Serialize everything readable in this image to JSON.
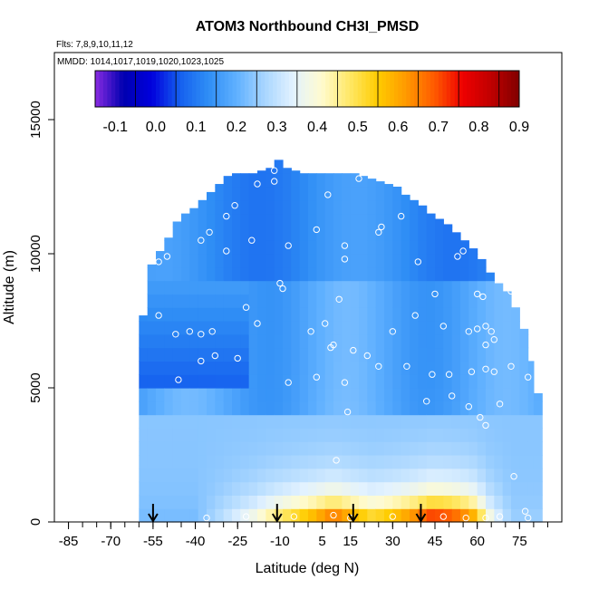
{
  "chart_data": {
    "type": "heatmap",
    "title": "ATOM3 Northbound CH3I_PMSD",
    "flights_label": "Flts: 7,8,9,10,11,12",
    "mmdd_label": "MMDD: 1014,1017,1019,1020,1023,1025",
    "xlabel": "Latitude (deg N)",
    "ylabel": "Altitude (m)",
    "xlim": [
      -90,
      90
    ],
    "ylim": [
      0,
      17500
    ],
    "x_ticks": [
      -85,
      -70,
      -55,
      -40,
      -25,
      -10,
      5,
      15,
      30,
      45,
      60,
      75
    ],
    "x_tick_labels": [
      "-85",
      "-70",
      "-55",
      "-40",
      "-25",
      "-10",
      "5",
      "15",
      "30",
      "45",
      "60",
      "75"
    ],
    "y_ticks": [
      0,
      5000,
      10000,
      15000
    ],
    "y_tick_labels": [
      "0",
      "5000",
      "10000",
      "15000"
    ],
    "colorbar": {
      "range": [
        -0.15,
        0.9
      ],
      "ticks": [
        -0.1,
        0.0,
        0.1,
        0.2,
        0.3,
        0.4,
        0.5,
        0.6,
        0.7,
        0.8,
        0.9
      ],
      "tick_labels": [
        "-0.1",
        "0.0",
        "0.1",
        "0.2",
        "0.3",
        "0.4",
        "0.5",
        "0.6",
        "0.7",
        "0.8",
        "0.9"
      ],
      "colors": [
        "#8a2be2",
        "#0000b0",
        "#0000dd",
        "#1560ee",
        "#2f8ef5",
        "#5fb0ff",
        "#a9d6ff",
        "#e2f2ff",
        "#fffbd0",
        "#ffe866",
        "#ffcc00",
        "#ff9900",
        "#ff5a00",
        "#ee0000",
        "#c00000",
        "#800000"
      ]
    },
    "outline": {
      "lat": [
        -60,
        -58,
        -55,
        -52,
        -50,
        -47,
        -45,
        -42,
        -40,
        -37,
        -35,
        -32,
        -30,
        -27,
        -25,
        -22,
        -20,
        -17,
        -15,
        -12,
        -10,
        10,
        13,
        15,
        18,
        20,
        23,
        25,
        28,
        30,
        33,
        35,
        38,
        40,
        43,
        45,
        48,
        50,
        53,
        55,
        58,
        60,
        63,
        65,
        68,
        70,
        73,
        75,
        78,
        80
      ],
      "top": [
        0,
        0,
        0,
        0,
        0,
        0,
        0,
        0,
        0,
        0,
        0,
        0,
        0,
        0,
        0,
        0,
        0,
        0,
        0,
        0,
        0,
        0,
        0,
        0,
        0,
        0,
        0,
        0,
        0,
        0,
        0,
        0,
        0,
        0,
        0,
        0,
        0,
        0,
        0,
        0,
        0,
        0,
        0,
        0,
        0,
        0,
        0,
        0,
        0,
        0
      ]
    },
    "columns": [
      {
        "lat": -60,
        "top": 7700
      },
      {
        "lat": -57,
        "top": 9600
      },
      {
        "lat": -54,
        "top": 10100
      },
      {
        "lat": -51,
        "top": 10600
      },
      {
        "lat": -48,
        "top": 11200
      },
      {
        "lat": -45,
        "top": 11500
      },
      {
        "lat": -42,
        "top": 11700
      },
      {
        "lat": -39,
        "top": 12000
      },
      {
        "lat": -36,
        "top": 12300
      },
      {
        "lat": -33,
        "top": 12600
      },
      {
        "lat": -30,
        "top": 12900
      },
      {
        "lat": -27,
        "top": 13000
      },
      {
        "lat": -24,
        "top": 13000
      },
      {
        "lat": -21,
        "top": 13000
      },
      {
        "lat": -18,
        "top": 13100
      },
      {
        "lat": -15,
        "top": 13200
      },
      {
        "lat": -12,
        "top": 13500
      },
      {
        "lat": -9,
        "top": 13200
      },
      {
        "lat": -6,
        "top": 13100
      },
      {
        "lat": -3,
        "top": 13000
      },
      {
        "lat": 0,
        "top": 13000
      },
      {
        "lat": 3,
        "top": 13000
      },
      {
        "lat": 6,
        "top": 13000
      },
      {
        "lat": 9,
        "top": 13000
      },
      {
        "lat": 12,
        "top": 13000
      },
      {
        "lat": 15,
        "top": 13000
      },
      {
        "lat": 18,
        "top": 12900
      },
      {
        "lat": 21,
        "top": 12800
      },
      {
        "lat": 24,
        "top": 12700
      },
      {
        "lat": 27,
        "top": 12600
      },
      {
        "lat": 30,
        "top": 12500
      },
      {
        "lat": 33,
        "top": 12200
      },
      {
        "lat": 36,
        "top": 12000
      },
      {
        "lat": 39,
        "top": 11800
      },
      {
        "lat": 42,
        "top": 11500
      },
      {
        "lat": 45,
        "top": 11300
      },
      {
        "lat": 48,
        "top": 11100
      },
      {
        "lat": 51,
        "top": 10800
      },
      {
        "lat": 54,
        "top": 10500
      },
      {
        "lat": 57,
        "top": 10200
      },
      {
        "lat": 60,
        "top": 9800
      },
      {
        "lat": 63,
        "top": 9300
      },
      {
        "lat": 66,
        "top": 8900
      },
      {
        "lat": 69,
        "top": 8600
      },
      {
        "lat": 72,
        "top": 8000
      },
      {
        "lat": 75,
        "top": 7200
      },
      {
        "lat": 78,
        "top": 6000
      },
      {
        "lat": 80,
        "top": 4800
      }
    ],
    "boundary_layer": [
      {
        "lat": -40,
        "v": 0.22
      },
      {
        "lat": -33,
        "v": 0.28
      },
      {
        "lat": -26,
        "v": 0.35
      },
      {
        "lat": -19,
        "v": 0.42
      },
      {
        "lat": -12,
        "v": 0.52
      },
      {
        "lat": -5,
        "v": 0.6
      },
      {
        "lat": 2,
        "v": 0.68
      },
      {
        "lat": 9,
        "v": 0.78
      },
      {
        "lat": 16,
        "v": 0.68
      },
      {
        "lat": 23,
        "v": 0.6
      },
      {
        "lat": 30,
        "v": 0.66
      },
      {
        "lat": 37,
        "v": 0.74
      },
      {
        "lat": 44,
        "v": 0.86
      },
      {
        "lat": 51,
        "v": 0.82
      },
      {
        "lat": 58,
        "v": 0.72
      },
      {
        "lat": 65,
        "v": 0.4
      },
      {
        "lat": 72,
        "v": 0.26
      }
    ],
    "points": [
      [
        -12,
        13100
      ],
      [
        -18,
        12600
      ],
      [
        -12,
        12700
      ],
      [
        18,
        12800
      ],
      [
        -26,
        11800
      ],
      [
        7,
        12200
      ],
      [
        -29,
        11400
      ],
      [
        -35,
        10800
      ],
      [
        -20,
        10500
      ],
      [
        -38,
        10500
      ],
      [
        -29,
        10100
      ],
      [
        33,
        11400
      ],
      [
        26,
        11000
      ],
      [
        25,
        10800
      ],
      [
        3,
        10900
      ],
      [
        -7,
        10300
      ],
      [
        13,
        10300
      ],
      [
        -55,
        10200
      ],
      [
        -50,
        9900
      ],
      [
        -53,
        9700
      ],
      [
        55,
        10100
      ],
      [
        53,
        9900
      ],
      [
        39,
        9700
      ],
      [
        13,
        9800
      ],
      [
        -10,
        8900
      ],
      [
        -9,
        8700
      ],
      [
        45,
        8500
      ],
      [
        60,
        8500
      ],
      [
        62,
        8400
      ],
      [
        72,
        8600
      ],
      [
        11,
        8300
      ],
      [
        -22,
        8000
      ],
      [
        -53,
        7700
      ],
      [
        48,
        7300
      ],
      [
        60,
        7200
      ],
      [
        63,
        7300
      ],
      [
        -42,
        7100
      ],
      [
        -34,
        7100
      ],
      [
        -38,
        7000
      ],
      [
        -47,
        7000
      ],
      [
        -18,
        7400
      ],
      [
        1,
        7100
      ],
      [
        6,
        7400
      ],
      [
        38,
        7700
      ],
      [
        30,
        7100
      ],
      [
        57,
        7100
      ],
      [
        65,
        7100
      ],
      [
        63,
        6600
      ],
      [
        66,
        6800
      ],
      [
        9,
        6600
      ],
      [
        16,
        6400
      ],
      [
        21,
        6200
      ],
      [
        8,
        6500
      ],
      [
        -33,
        6200
      ],
      [
        -38,
        6000
      ],
      [
        -25,
        6100
      ],
      [
        -7,
        5200
      ],
      [
        3,
        5400
      ],
      [
        13,
        5200
      ],
      [
        25,
        5800
      ],
      [
        35,
        5800
      ],
      [
        44,
        5500
      ],
      [
        50,
        5500
      ],
      [
        58,
        5600
      ],
      [
        63,
        5700
      ],
      [
        66,
        5600
      ],
      [
        72,
        5800
      ],
      [
        78,
        5400
      ],
      [
        -46,
        5300
      ],
      [
        42,
        4500
      ],
      [
        51,
        4700
      ],
      [
        57,
        4300
      ],
      [
        61,
        3900
      ],
      [
        63,
        3600
      ],
      [
        68,
        4400
      ],
      [
        14,
        4100
      ],
      [
        10,
        2300
      ],
      [
        73,
        1700
      ],
      [
        77,
        400
      ],
      [
        78,
        150
      ],
      [
        -36,
        150
      ],
      [
        -22,
        200
      ],
      [
        -5,
        200
      ],
      [
        9,
        250
      ],
      [
        15,
        150
      ],
      [
        30,
        200
      ],
      [
        48,
        200
      ],
      [
        56,
        150
      ],
      [
        63,
        150
      ],
      [
        68,
        200
      ]
    ],
    "arrows_lat": [
      -55,
      -11,
      16,
      40
    ]
  }
}
